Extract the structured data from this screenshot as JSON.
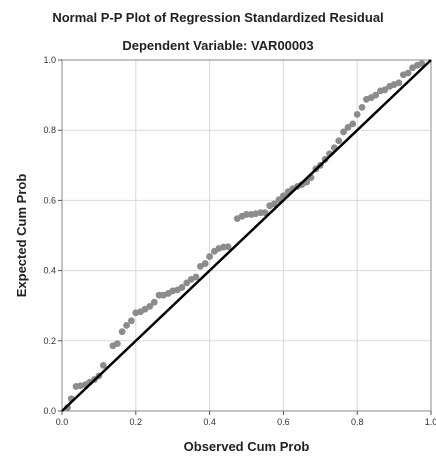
{
  "chart_data": {
    "type": "scatter",
    "title": "Normal P-P Plot of Regression Standardized Residual",
    "subtitle": "Dependent Variable: VAR00003",
    "xlabel": "Observed Cum Prob",
    "ylabel": "Expected Cum Prob",
    "xlim": [
      0,
      1.0
    ],
    "ylim": [
      0,
      1.0
    ],
    "x_ticks": [
      "0.0",
      "0.2",
      "0.4",
      "0.6",
      "0.8",
      "1.0"
    ],
    "y_ticks": [
      "0.0",
      "0.2",
      "0.4",
      "0.6",
      "0.8",
      "1.0"
    ],
    "grid": true,
    "reference_line": {
      "from": [
        0,
        0
      ],
      "to": [
        1,
        1
      ]
    },
    "colors": {
      "points": "#8c8c8c",
      "line": "#000000",
      "grid": "#d9d9d9",
      "frame": "#888888"
    },
    "points": [
      [
        0.015,
        0.01
      ],
      [
        0.025,
        0.035
      ],
      [
        0.038,
        0.07
      ],
      [
        0.05,
        0.072
      ],
      [
        0.063,
        0.075
      ],
      [
        0.075,
        0.082
      ],
      [
        0.088,
        0.09
      ],
      [
        0.1,
        0.1
      ],
      [
        0.112,
        0.13
      ],
      [
        0.138,
        0.186
      ],
      [
        0.15,
        0.192
      ],
      [
        0.163,
        0.226
      ],
      [
        0.175,
        0.244
      ],
      [
        0.188,
        0.257
      ],
      [
        0.2,
        0.28
      ],
      [
        0.213,
        0.283
      ],
      [
        0.225,
        0.29
      ],
      [
        0.238,
        0.298
      ],
      [
        0.25,
        0.31
      ],
      [
        0.263,
        0.33
      ],
      [
        0.275,
        0.33
      ],
      [
        0.288,
        0.335
      ],
      [
        0.3,
        0.342
      ],
      [
        0.313,
        0.345
      ],
      [
        0.325,
        0.352
      ],
      [
        0.338,
        0.365
      ],
      [
        0.35,
        0.375
      ],
      [
        0.363,
        0.382
      ],
      [
        0.375,
        0.412
      ],
      [
        0.388,
        0.42
      ],
      [
        0.4,
        0.44
      ],
      [
        0.413,
        0.455
      ],
      [
        0.425,
        0.463
      ],
      [
        0.438,
        0.467
      ],
      [
        0.45,
        0.468
      ],
      [
        0.475,
        0.548
      ],
      [
        0.488,
        0.555
      ],
      [
        0.5,
        0.56
      ],
      [
        0.513,
        0.56
      ],
      [
        0.525,
        0.562
      ],
      [
        0.538,
        0.565
      ],
      [
        0.55,
        0.565
      ],
      [
        0.563,
        0.585
      ],
      [
        0.575,
        0.59
      ],
      [
        0.588,
        0.602
      ],
      [
        0.6,
        0.613
      ],
      [
        0.613,
        0.625
      ],
      [
        0.625,
        0.633
      ],
      [
        0.638,
        0.64
      ],
      [
        0.65,
        0.645
      ],
      [
        0.663,
        0.652
      ],
      [
        0.675,
        0.665
      ],
      [
        0.688,
        0.69
      ],
      [
        0.7,
        0.7
      ],
      [
        0.713,
        0.717
      ],
      [
        0.725,
        0.733
      ],
      [
        0.738,
        0.75
      ],
      [
        0.75,
        0.77
      ],
      [
        0.763,
        0.795
      ],
      [
        0.775,
        0.808
      ],
      [
        0.788,
        0.818
      ],
      [
        0.8,
        0.845
      ],
      [
        0.813,
        0.865
      ],
      [
        0.825,
        0.888
      ],
      [
        0.838,
        0.893
      ],
      [
        0.85,
        0.9
      ],
      [
        0.863,
        0.912
      ],
      [
        0.875,
        0.915
      ],
      [
        0.888,
        0.925
      ],
      [
        0.9,
        0.93
      ],
      [
        0.913,
        0.935
      ],
      [
        0.925,
        0.958
      ],
      [
        0.938,
        0.963
      ],
      [
        0.95,
        0.978
      ],
      [
        0.963,
        0.985
      ],
      [
        0.975,
        0.99
      ]
    ]
  }
}
